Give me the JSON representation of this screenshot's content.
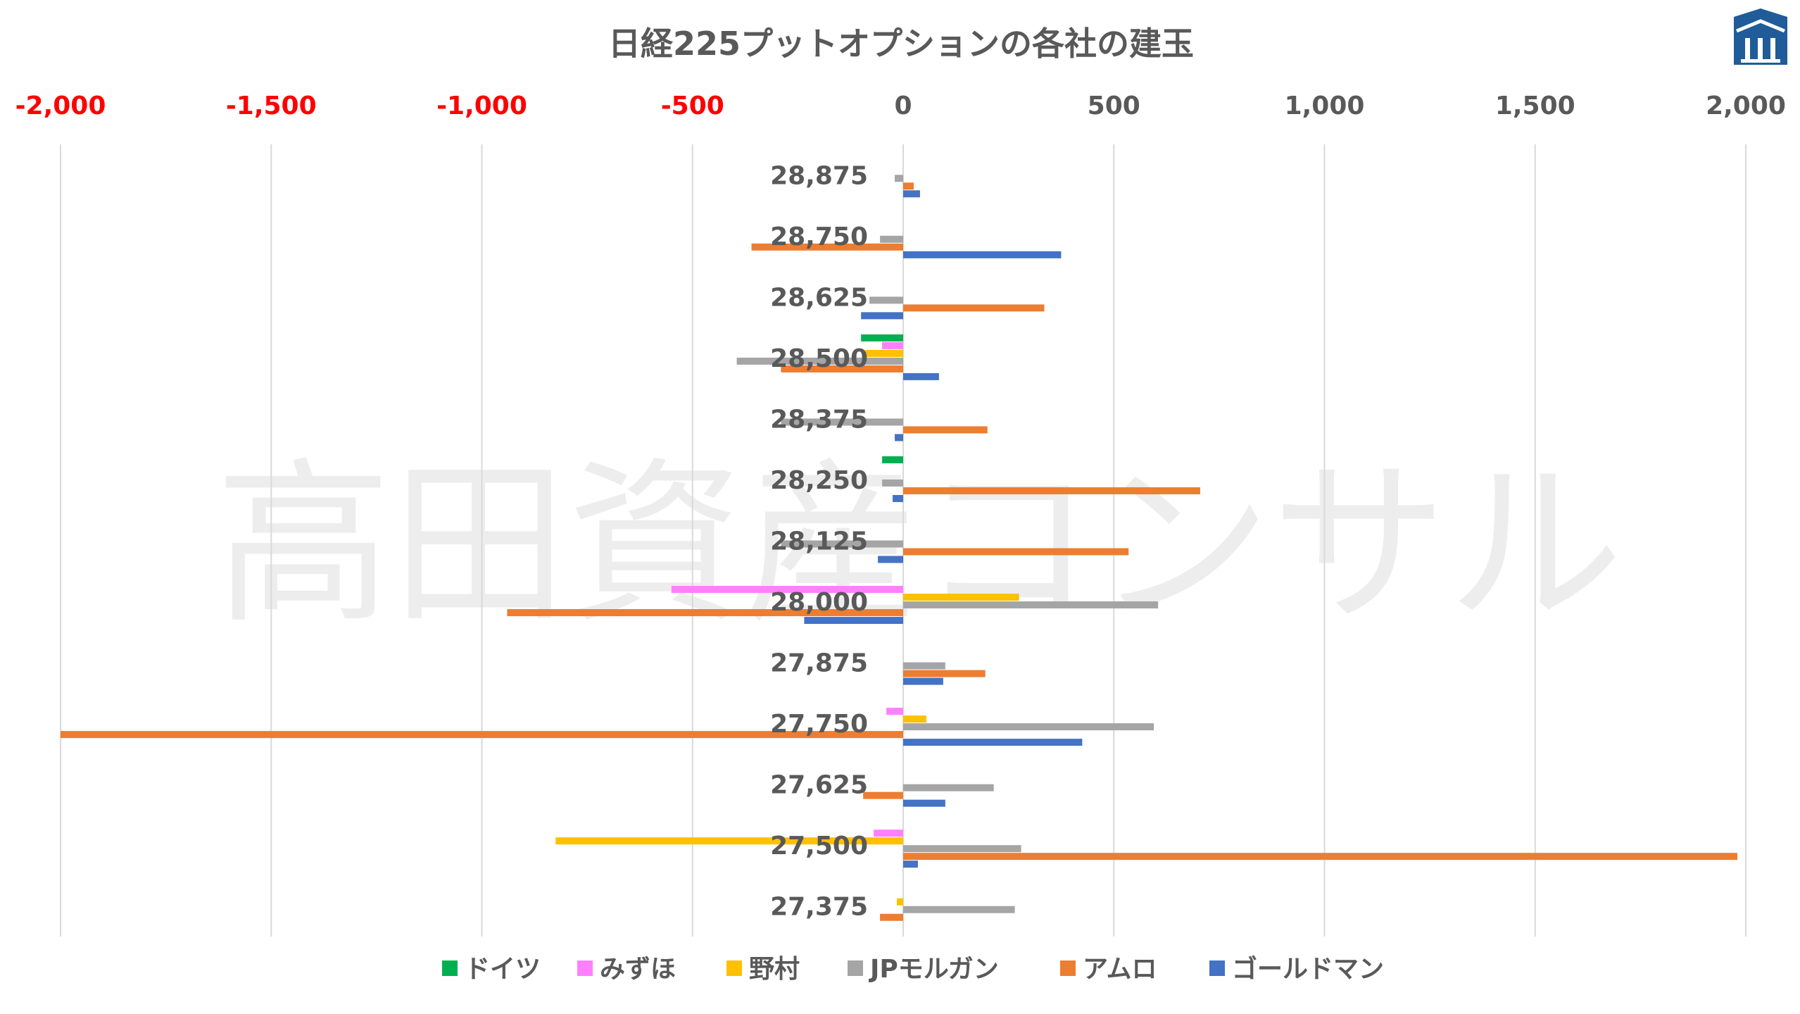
{
  "watermark": "高田資産コンサル",
  "logo_icon": "house-pillar-logo-icon",
  "colors": {
    "ドイツ": "#00B050",
    "みずほ": "#FF80FF",
    "野村": "#FFC000",
    "JPモルガン": "#A5A5A5",
    "アムロ": "#ED7D31",
    "ゴールドマン": "#4472C4",
    "negative_tick": "#FF0000",
    "positive_tick": "#595959",
    "grid": "#D9D9D9",
    "logo": "#1F5C99"
  },
  "chart_data": {
    "type": "bar",
    "orientation": "horizontal",
    "title": "日経225プットオプションの各社の建玉",
    "xlabel": "",
    "ylabel": "",
    "xlim": [
      -2000,
      2000
    ],
    "xticks": [
      -2000,
      -1500,
      -1000,
      -500,
      0,
      500,
      1000,
      1500,
      2000
    ],
    "xtick_labels": [
      "-2,000",
      "-1,500",
      "-1,000",
      "-500",
      "0",
      "500",
      "1,000",
      "1,500",
      "2,000"
    ],
    "x_axis_position": "top",
    "grid": true,
    "legend_position": "bottom",
    "categories": [
      "28,875",
      "28,750",
      "28,625",
      "28,500",
      "28,375",
      "28,250",
      "28,125",
      "28,000",
      "27,875",
      "27,750",
      "27,625",
      "27,500",
      "27,375"
    ],
    "series": [
      {
        "name": "ドイツ",
        "values": [
          0,
          0,
          0,
          -100,
          0,
          -50,
          0,
          0,
          0,
          0,
          0,
          0,
          0
        ]
      },
      {
        "name": "みずほ",
        "values": [
          0,
          0,
          0,
          -50,
          0,
          0,
          0,
          -550,
          0,
          -40,
          0,
          -70,
          0
        ]
      },
      {
        "name": "野村",
        "values": [
          0,
          0,
          0,
          -90,
          0,
          0,
          0,
          275,
          0,
          55,
          0,
          -825,
          -15
        ]
      },
      {
        "name": "JPモルガン",
        "values": [
          -20,
          -55,
          -80,
          -395,
          -290,
          -50,
          -290,
          605,
          100,
          595,
          215,
          280,
          265
        ]
      },
      {
        "name": "アムロ",
        "values": [
          25,
          -360,
          335,
          -290,
          200,
          705,
          535,
          -940,
          195,
          -2000,
          -95,
          1980,
          -55
        ]
      },
      {
        "name": "ゴールドマン",
        "values": [
          40,
          375,
          -100,
          85,
          -20,
          -25,
          -60,
          -235,
          95,
          425,
          100,
          35,
          0
        ]
      }
    ]
  }
}
